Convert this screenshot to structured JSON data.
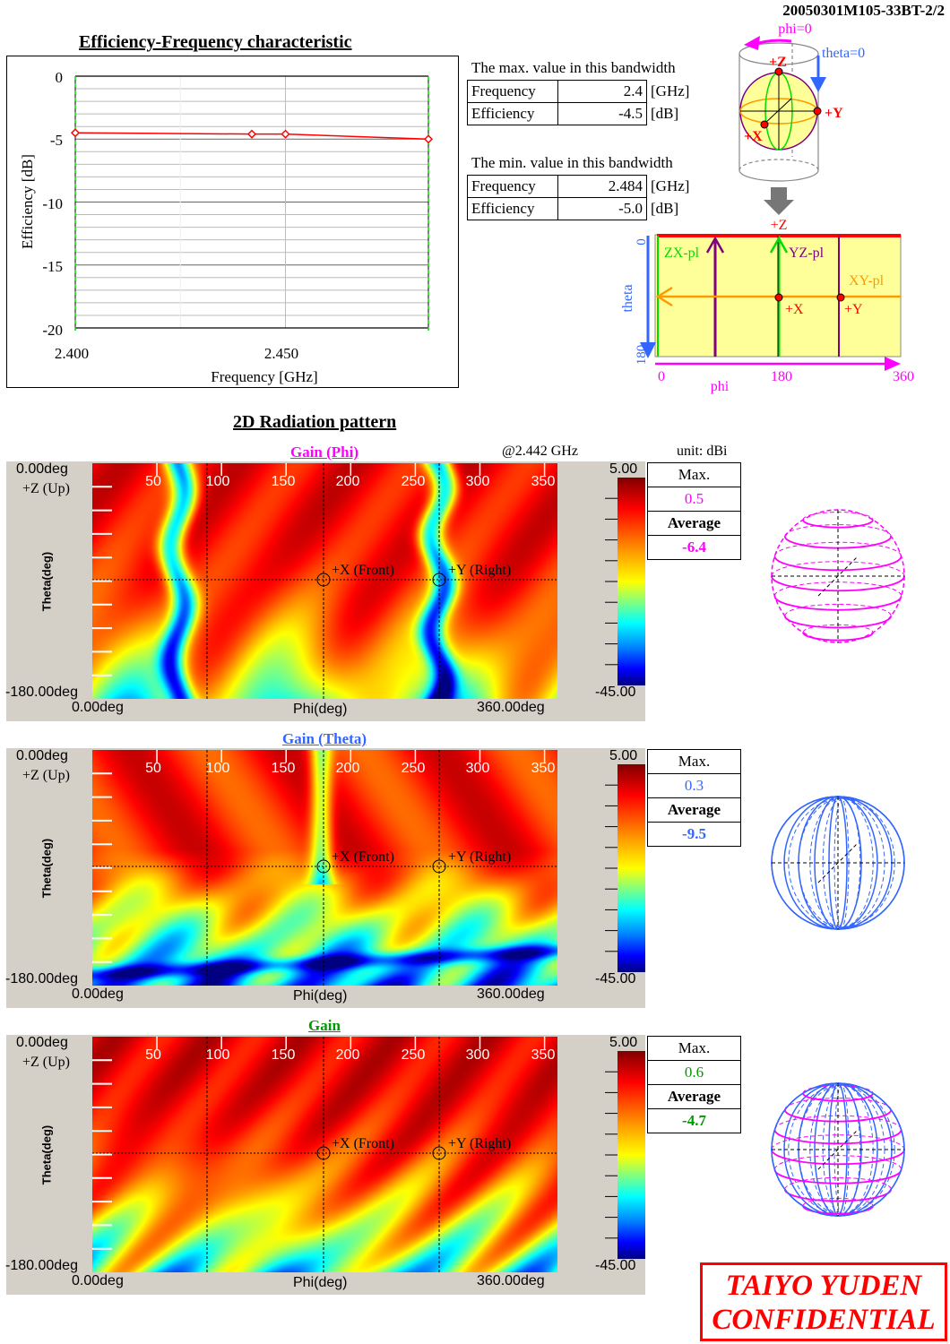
{
  "document_id": "20050301M105-33BT-2/2",
  "efficiency_section": {
    "title": "Efficiency-Frequency characteristic",
    "max_caption": "The max. value in this bandwidth",
    "max_rows": [
      {
        "label": "Frequency",
        "value": "2.4",
        "unit": "[GHz]"
      },
      {
        "label": "Efficiency",
        "value": "-4.5",
        "unit": "[dB]"
      }
    ],
    "min_caption": "The min. value in this bandwidth",
    "min_rows": [
      {
        "label": "Frequency",
        "value": "2.484",
        "unit": "[GHz]"
      },
      {
        "label": "Efficiency",
        "value": "-5.0",
        "unit": "[dB]"
      }
    ]
  },
  "coordinate_diagram": {
    "phi0": "phi=0",
    "theta0": "theta=0",
    "plusZ": "+Z",
    "plusX": "+X",
    "plusY": "+Y",
    "zx": "ZX-pl",
    "yz": "YZ-pl",
    "xy": "XY-pl",
    "theta_label": "theta",
    "theta_0": "0",
    "theta_180": "180",
    "phi_label": "phi",
    "phi_0": "0",
    "phi_180": "180",
    "phi_360": "360"
  },
  "radiation_section": {
    "title": "2D Radiation pattern",
    "frequency": "@2.442  GHz",
    "unit": "unit: dBi",
    "axis": {
      "theta_top": "0.00deg",
      "up_label": "+Z (Up)",
      "theta_label": "Theta(deg)",
      "theta_bottom": "-180.00deg",
      "phi_start": "0.00deg",
      "phi_label": "Phi(deg)",
      "phi_end": "360.00deg",
      "phi_ticks": [
        "50",
        "100",
        "150",
        "200",
        "250",
        "300",
        "350"
      ],
      "front": "+X (Front)",
      "right": "+Y (Right)",
      "cbar_max": "5.00",
      "cbar_min": "-45.00"
    },
    "panels": [
      {
        "title": "Gain (Phi)",
        "color": "#ff00ff",
        "max_label": "Max.",
        "max": "0.5",
        "avg_label": "Average",
        "avg": "-6.4",
        "sphere": "phi"
      },
      {
        "title": "Gain (Theta)",
        "color": "#3366ff",
        "max_label": "Max.",
        "max": "0.3",
        "avg_label": "Average",
        "avg": "-9.5",
        "sphere": "theta"
      },
      {
        "title": "Gain",
        "color": "#009900",
        "max_label": "Max.",
        "max": "0.6",
        "avg_label": "Average",
        "avg": "-4.7",
        "sphere": "both"
      }
    ]
  },
  "confidential": {
    "line1": "TAIYO YUDEN",
    "line2": "CONFIDENTIAL"
  },
  "chart_data": [
    {
      "type": "line",
      "title": "Efficiency-Frequency characteristic",
      "xlabel": "Frequency  [GHz]",
      "ylabel": "Efficiency [dB]",
      "xlim": [
        2.4,
        2.484
      ],
      "ylim": [
        -20,
        0
      ],
      "xticks": [
        "2.400",
        "2.450"
      ],
      "yticks": [
        "0",
        "-5",
        "-10",
        "-15",
        "-20"
      ],
      "grid": true,
      "series": [
        {
          "x": [
            2.4,
            2.442,
            2.45,
            2.484
          ],
          "y": [
            -4.5,
            -4.6,
            -4.6,
            -5.0
          ],
          "color": "#ff0000"
        }
      ]
    },
    {
      "type": "heatmap",
      "title": "Gain (Phi)",
      "xlabel": "Phi(deg)",
      "ylabel": "Theta(deg)",
      "xlim": [
        0,
        360
      ],
      "ylim": [
        0,
        180
      ],
      "colorbar": [
        -45,
        5
      ]
    },
    {
      "type": "heatmap",
      "title": "Gain (Theta)",
      "xlabel": "Phi(deg)",
      "ylabel": "Theta(deg)",
      "xlim": [
        0,
        360
      ],
      "ylim": [
        0,
        180
      ],
      "colorbar": [
        -45,
        5
      ]
    },
    {
      "type": "heatmap",
      "title": "Gain",
      "xlabel": "Phi(deg)",
      "ylabel": "Theta(deg)",
      "xlim": [
        0,
        360
      ],
      "ylim": [
        0,
        180
      ],
      "colorbar": [
        -45,
        5
      ]
    }
  ]
}
